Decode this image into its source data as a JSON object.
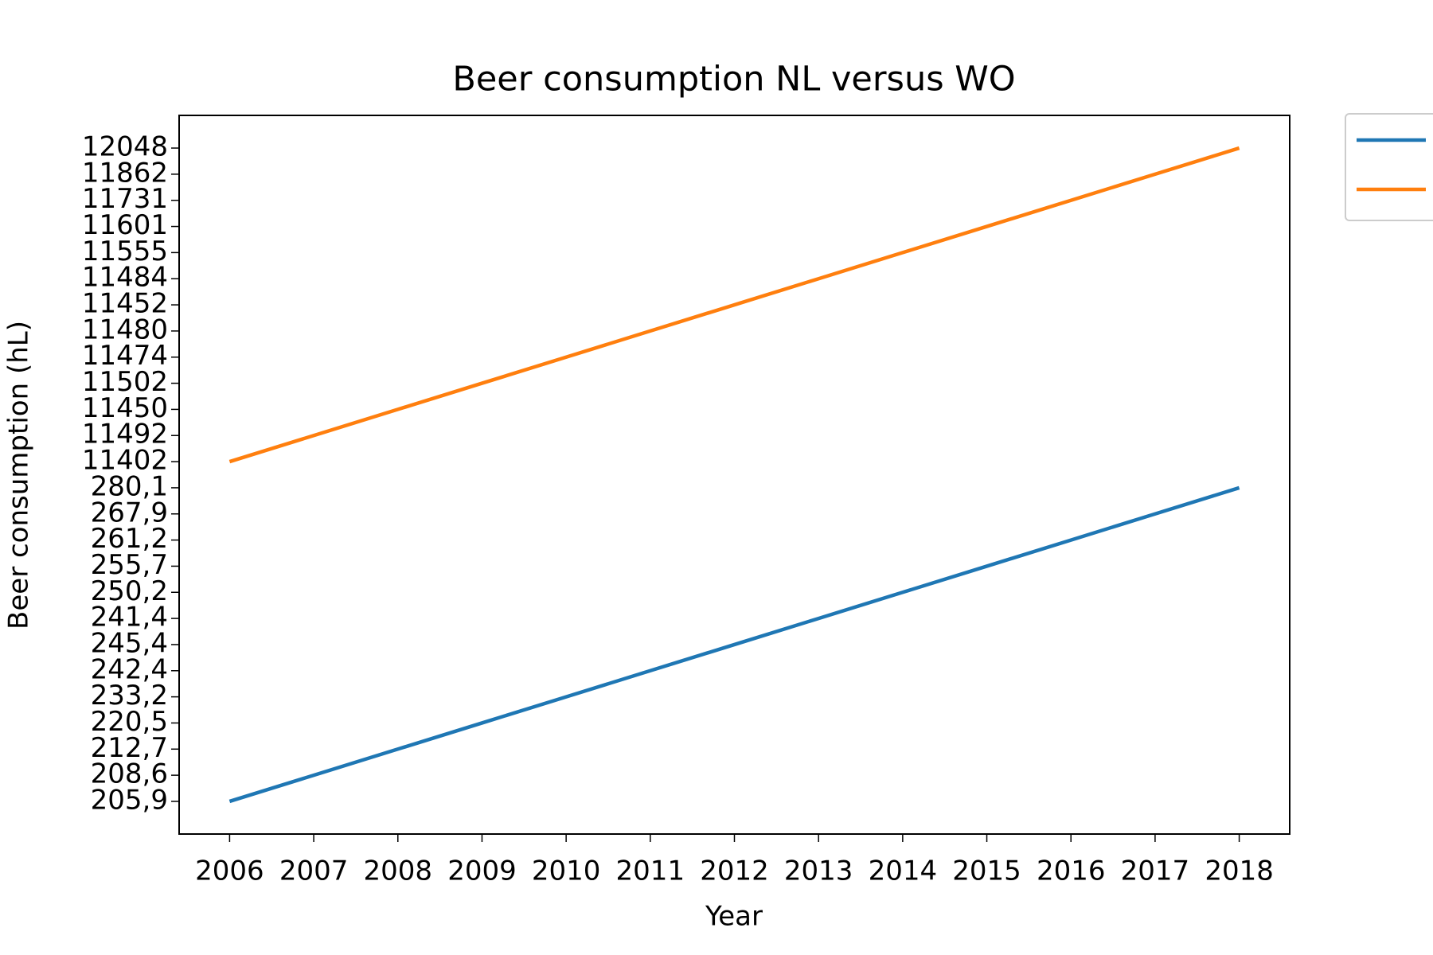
{
  "chart_data": {
    "type": "line",
    "title": "Beer consumption NL versus WO",
    "xlabel": "Year",
    "ylabel": "Beer consumption (hL)",
    "x": [
      2006,
      2007,
      2008,
      2009,
      2010,
      2011,
      2012,
      2013,
      2014,
      2015,
      2016,
      2017,
      2018
    ],
    "xlim": [
      2005.4,
      2018.6
    ],
    "xticks": [
      2006,
      2007,
      2008,
      2009,
      2010,
      2011,
      2012,
      2013,
      2014,
      2015,
      2016,
      2017,
      2018
    ],
    "y_scale": "categorical",
    "yticks": [
      {
        "value": 205.9,
        "label": "205,9"
      },
      {
        "value": 208.6,
        "label": "208,6"
      },
      {
        "value": 212.7,
        "label": "212,7"
      },
      {
        "value": 220.5,
        "label": "220,5"
      },
      {
        "value": 233.2,
        "label": "233,2"
      },
      {
        "value": 242.4,
        "label": "242,4"
      },
      {
        "value": 245.4,
        "label": "245,4"
      },
      {
        "value": 241.4,
        "label": "241,4"
      },
      {
        "value": 250.2,
        "label": "250,2"
      },
      {
        "value": 255.7,
        "label": "255,7"
      },
      {
        "value": 261.2,
        "label": "261,2"
      },
      {
        "value": 267.9,
        "label": "267,9"
      },
      {
        "value": 280.1,
        "label": "280,1"
      },
      11402,
      11492,
      11450,
      11502,
      11474,
      11480,
      11452,
      11484,
      11555,
      11601,
      11731,
      11862,
      12048
    ],
    "series": [
      {
        "color": "#1f77b4",
        "values": [
          205.9,
          208.6,
          212.7,
          220.5,
          233.2,
          242.4,
          245.4,
          241.4,
          250.2,
          255.7,
          261.2,
          267.9,
          280.1
        ]
      },
      {
        "color": "#ff7f0e",
        "values": [
          11402,
          11492,
          11450,
          11502,
          11474,
          11480,
          11452,
          11484,
          11555,
          11601,
          11731,
          11862,
          12048
        ]
      }
    ],
    "legend": "outside-right",
    "grid": false
  }
}
